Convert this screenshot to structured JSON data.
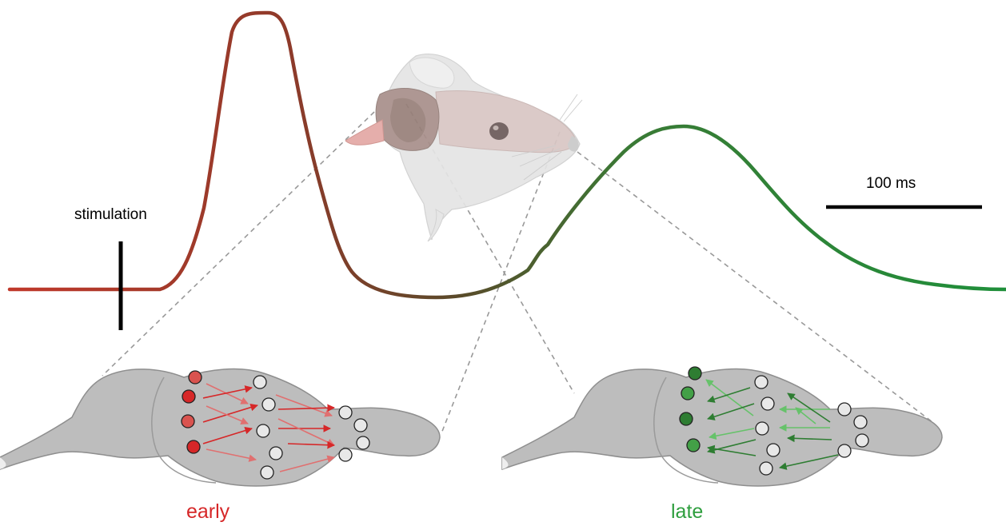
{
  "labels": {
    "stimulation": "stimulation",
    "scale_bar": "100 ms",
    "early": "early",
    "late": "late"
  },
  "colors": {
    "early": "#d62728",
    "late": "#2e9e3e",
    "trace_start": "#c0392b",
    "trace_mid": "#5a4a2a",
    "trace_end": "#1f8f3a",
    "brain": "#bcbcbc",
    "brain_outline": "#8e8e8e",
    "dashed": "#999999"
  },
  "panels": {
    "early": {
      "active_nodes": [
        "#d9534f",
        "#d62728",
        "#d9534f",
        "#d62728"
      ]
    },
    "late": {
      "active_nodes": [
        "#2e7d32",
        "#43a047",
        "#2e7d32",
        "#43a047"
      ]
    }
  },
  "icons": [
    "mouse-head-illustration",
    "brain-illustration"
  ]
}
